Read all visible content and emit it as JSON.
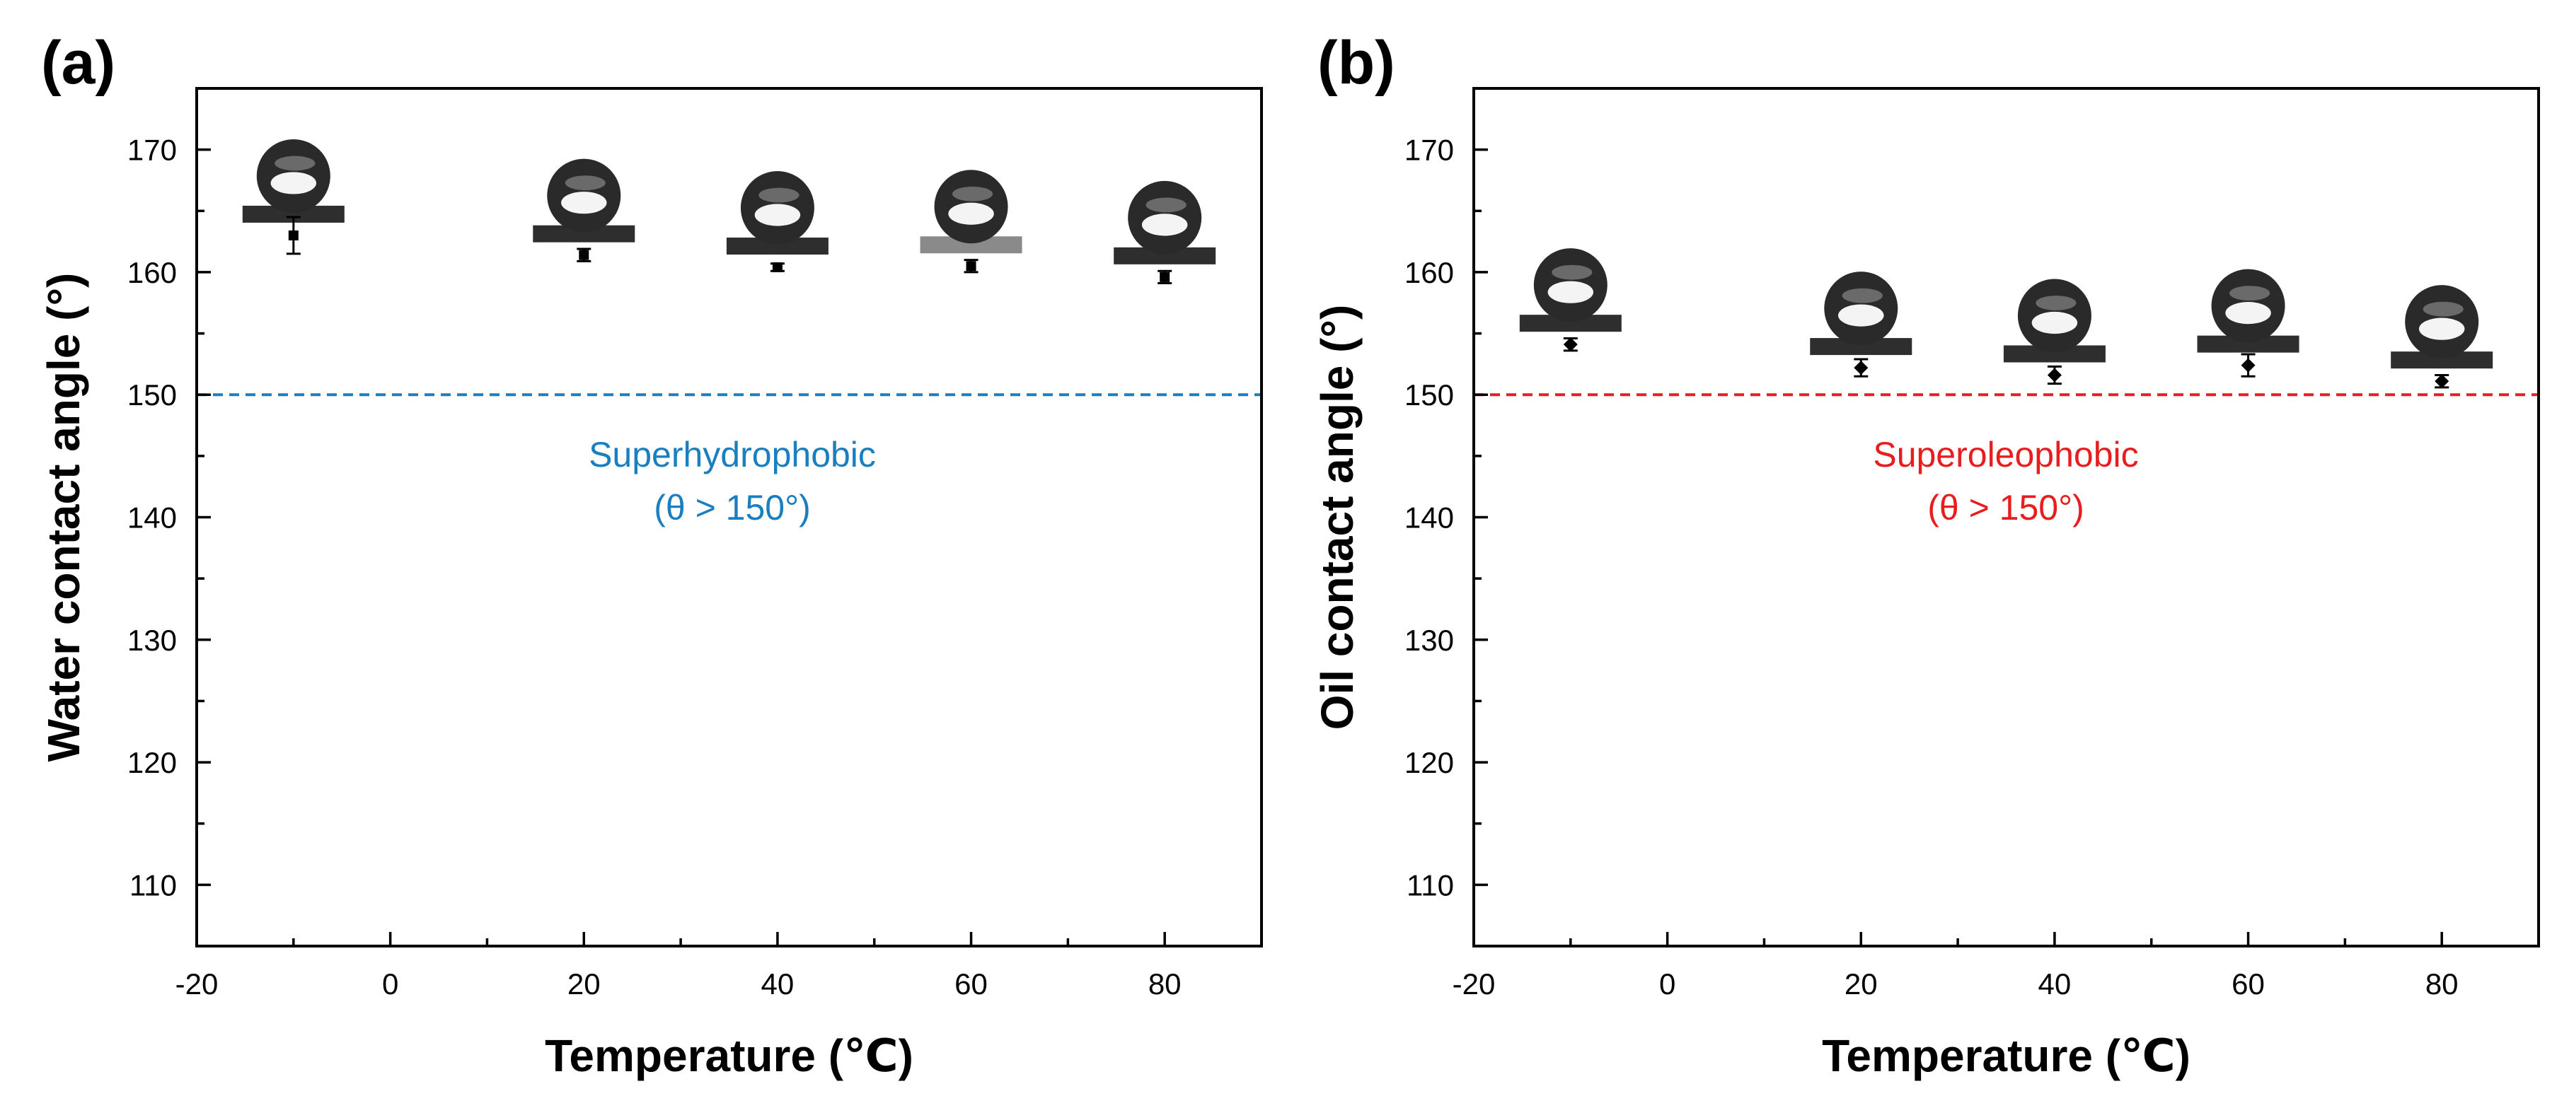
{
  "chart_data": [
    {
      "type": "scatter",
      "panel_label": "(a)",
      "xlabel": "Temperature (℃)",
      "ylabel": "Water contact angle (°)",
      "xlim": [
        -20,
        90
      ],
      "ylim": [
        105,
        175
      ],
      "xticks": [
        -20,
        0,
        20,
        40,
        60,
        80
      ],
      "yticks": [
        110,
        120,
        130,
        140,
        150,
        160,
        170
      ],
      "x": [
        -10,
        20,
        40,
        60,
        80
      ],
      "y": [
        163.0,
        161.4,
        160.4,
        160.5,
        159.6
      ],
      "error": [
        1.5,
        0.5,
        0.3,
        0.5,
        0.5
      ],
      "marker": "square",
      "threshold": {
        "value": 150,
        "color": "#1a7fc1",
        "style": "dashed"
      },
      "annotation": {
        "line1": "Superhydrophobic",
        "line2": "(θ > 150°)",
        "color": "#1a7fc1"
      },
      "droplet_photos": [
        {
          "x": -10,
          "label": "water droplet at -10 ℃"
        },
        {
          "x": 20,
          "label": "water droplet at 20 ℃"
        },
        {
          "x": 40,
          "label": "water droplet at 40 ℃"
        },
        {
          "x": 60,
          "label": "water droplet at 60 ℃"
        },
        {
          "x": 80,
          "label": "water droplet at 80 ℃"
        }
      ]
    },
    {
      "type": "scatter",
      "panel_label": "(b)",
      "xlabel": "Temperature (℃)",
      "ylabel": "Oil contact angle (°)",
      "xlim": [
        -20,
        90
      ],
      "ylim": [
        105,
        175
      ],
      "xticks": [
        -20,
        0,
        20,
        40,
        60,
        80
      ],
      "yticks": [
        110,
        120,
        130,
        140,
        150,
        160,
        170
      ],
      "x": [
        -10,
        20,
        40,
        60,
        80
      ],
      "y": [
        154.1,
        152.2,
        151.6,
        152.4,
        151.1
      ],
      "error": [
        0.5,
        0.7,
        0.7,
        0.9,
        0.5
      ],
      "marker": "diamond",
      "threshold": {
        "value": 150,
        "color": "#e81e1e",
        "style": "dashed"
      },
      "annotation": {
        "line1": "Superoleophobic",
        "line2": "(θ > 150°)",
        "color": "#e81e1e"
      },
      "droplet_photos": [
        {
          "x": -10,
          "label": "oil droplet at -10 ℃"
        },
        {
          "x": 20,
          "label": "oil droplet at 20 ℃"
        },
        {
          "x": 40,
          "label": "oil droplet at 40 ℃"
        },
        {
          "x": 60,
          "label": "oil droplet at 60 ℃"
        },
        {
          "x": 80,
          "label": "oil droplet at 80 ℃"
        }
      ]
    }
  ]
}
